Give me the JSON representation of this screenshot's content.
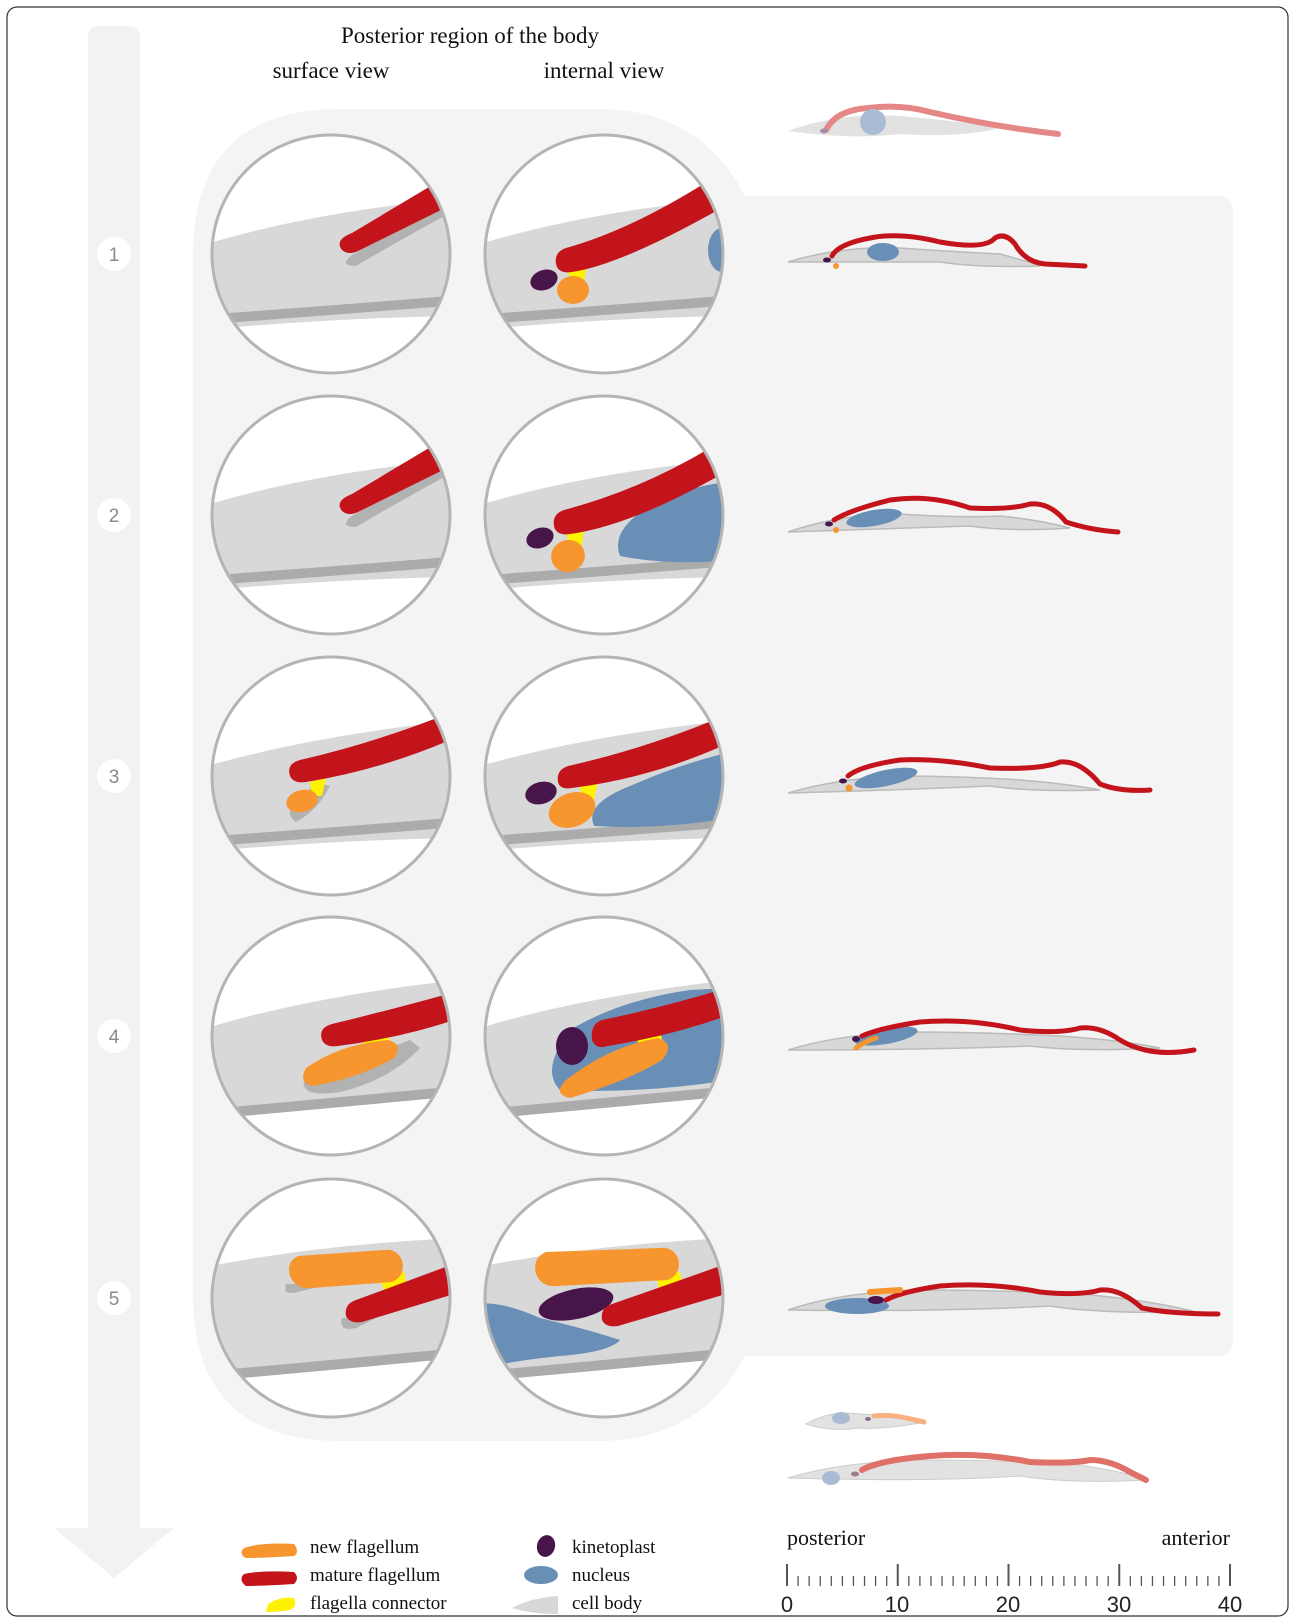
{
  "header": {
    "title": "Posterior region of the body",
    "col_surface": "surface view",
    "col_internal": "internal view"
  },
  "steps": [
    "1",
    "2",
    "3",
    "4",
    "5"
  ],
  "legend": {
    "new_flagellum": "new flagellum",
    "mature_flagellum": "mature flagellum",
    "flagella_connector": "flagella connector",
    "kinetoplast": "kinetoplast",
    "nucleus": "nucleus",
    "cell_body": "cell body"
  },
  "scale": {
    "left_label": "posterior",
    "right_label": "anterior",
    "ticks": [
      "0",
      "10",
      "20",
      "30",
      "40"
    ]
  },
  "colors": {
    "new_flagellum": "#f7962f",
    "mature_flagellum": "#c4141b",
    "flagella_connector": "#fff200",
    "kinetoplast": "#48154a",
    "nucleus": "#6a8fb7",
    "cell_body": "#d8d8d8",
    "panel_bg": "#f4f4f4"
  }
}
